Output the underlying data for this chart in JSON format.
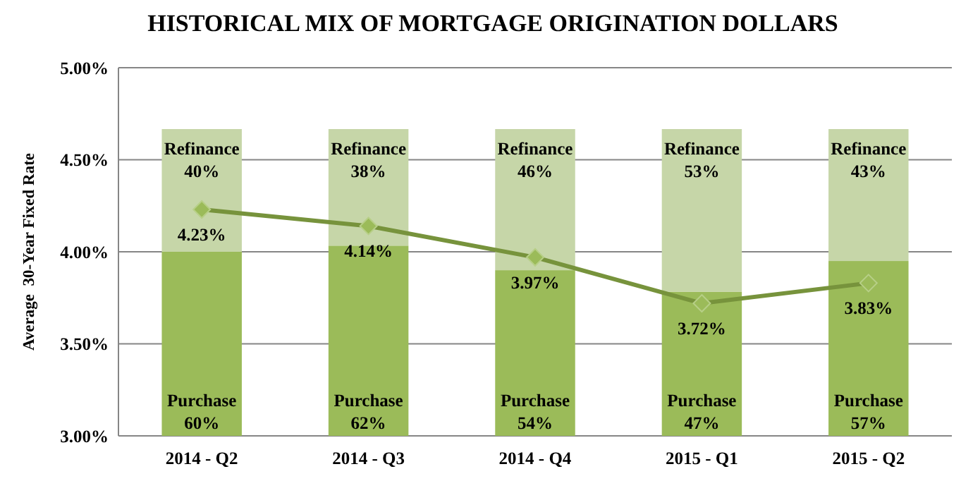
{
  "chart_data": {
    "type": "bar",
    "title": "HISTORICAL MIX OF MORTGAGE ORIGINATION DOLLARS",
    "ylabel": "Average  30-Year Fixed Rate",
    "categories": [
      "2014 - Q2",
      "2014 - Q3",
      "2014 - Q4",
      "2015 - Q1",
      "2015 - Q2"
    ],
    "stacked": true,
    "series": [
      {
        "name": "Purchase",
        "color": "#9bbb59",
        "axis": "y2",
        "values": [
          60,
          62,
          54,
          47,
          57
        ],
        "value_labels": [
          "60%",
          "62%",
          "54%",
          "47%",
          "57%"
        ]
      },
      {
        "name": "Refinance",
        "color": "#c6d6a8",
        "axis": "y2",
        "values": [
          40,
          38,
          46,
          53,
          43
        ],
        "value_labels": [
          "40%",
          "38%",
          "46%",
          "53%",
          "43%"
        ]
      },
      {
        "type": "line",
        "color": "#77933c",
        "marker": "diamond",
        "values": [
          4.23,
          4.14,
          3.97,
          3.72,
          3.83
        ],
        "value_labels": [
          "4.23%",
          "4.14%",
          "3.97%",
          "3.72%",
          "3.83%"
        ]
      }
    ],
    "ylim": [
      3,
      5
    ],
    "yticks": [
      {
        "value": 3,
        "label": "3.00%"
      },
      {
        "value": 3.5,
        "label": "3.50%"
      },
      {
        "value": 4,
        "label": "4.00%"
      },
      {
        "value": 4.5,
        "label": "4.50%"
      },
      {
        "value": 5,
        "label": "5.00%"
      }
    ],
    "y2lim": [
      0,
      120
    ],
    "grid": "y"
  }
}
